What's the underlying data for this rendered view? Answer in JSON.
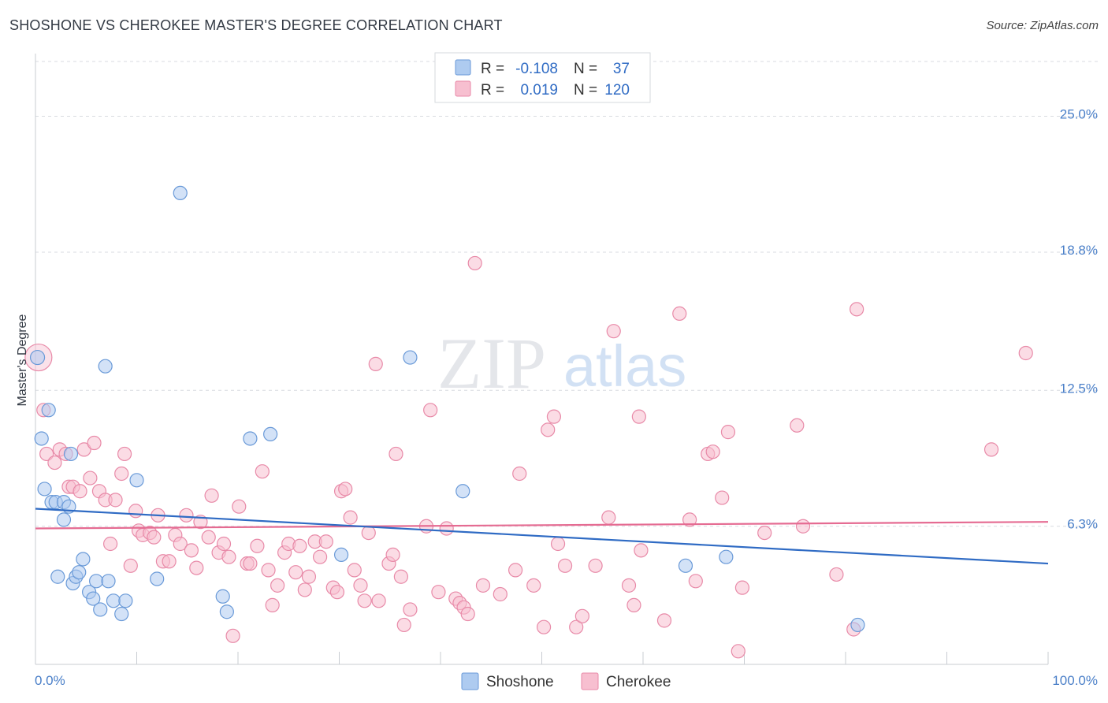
{
  "title": "SHOSHONE VS CHEROKEE MASTER'S DEGREE CORRELATION CHART",
  "source": "Source: ZipAtlas.com",
  "watermark": {
    "zip": "ZIP",
    "atlas": "atlas"
  },
  "colors": {
    "shoshone_fill": "#aecbf0",
    "shoshone_stroke": "#6a9ad8",
    "shoshone_line": "#2f6bc4",
    "cherokee_fill": "#f7bfd0",
    "cherokee_stroke": "#e88aa8",
    "cherokee_line": "#e56b92",
    "grid": "#d8dbe0",
    "axis": "#c8ccd2"
  },
  "legend": {
    "rows": [
      {
        "series": "Shoshone",
        "r_label": "R =",
        "r_value": "-0.108",
        "n_label": "N =",
        "n_value": "37"
      },
      {
        "series": "Cherokee",
        "r_label": "R =",
        "r_value": "0.019",
        "n_label": "N =",
        "n_value": "120"
      }
    ]
  },
  "chart_data": {
    "type": "scatter",
    "title": "SHOSHONE VS CHEROKEE MASTER'S DEGREE CORRELATION CHART",
    "xlabel": "",
    "ylabel": "Master's Degree",
    "xlim": [
      0,
      100
    ],
    "ylim": [
      0,
      27.5
    ],
    "x_tick_labels": [
      {
        "value": 0,
        "label": "0.0%"
      },
      {
        "value": 100,
        "label": "100.0%"
      }
    ],
    "y_tick_labels": [
      {
        "value": 6.3,
        "label": "6.3%"
      },
      {
        "value": 12.5,
        "label": "12.5%"
      },
      {
        "value": 18.8,
        "label": "18.8%"
      },
      {
        "value": 25.0,
        "label": "25.0%"
      }
    ],
    "grid": true,
    "legend_position": "top-center",
    "series": [
      {
        "name": "Shoshone",
        "trend": {
          "x": [
            0,
            100
          ],
          "y": [
            7.1,
            4.6
          ]
        },
        "points": [
          {
            "x": 0.2,
            "y": 14.0
          },
          {
            "x": 0.6,
            "y": 10.3
          },
          {
            "x": 0.9,
            "y": 8.0
          },
          {
            "x": 1.3,
            "y": 11.6
          },
          {
            "x": 1.6,
            "y": 7.4
          },
          {
            "x": 2.0,
            "y": 7.4
          },
          {
            "x": 2.2,
            "y": 4.0
          },
          {
            "x": 2.8,
            "y": 7.4
          },
          {
            "x": 2.8,
            "y": 6.6
          },
          {
            "x": 3.3,
            "y": 7.2
          },
          {
            "x": 3.5,
            "y": 9.6
          },
          {
            "x": 3.7,
            "y": 3.7
          },
          {
            "x": 4.0,
            "y": 4.0
          },
          {
            "x": 4.3,
            "y": 4.2
          },
          {
            "x": 4.7,
            "y": 4.8
          },
          {
            "x": 5.3,
            "y": 3.3
          },
          {
            "x": 5.7,
            "y": 3.0
          },
          {
            "x": 6.0,
            "y": 3.8
          },
          {
            "x": 6.4,
            "y": 2.5
          },
          {
            "x": 6.9,
            "y": 13.6
          },
          {
            "x": 7.2,
            "y": 3.8
          },
          {
            "x": 7.7,
            "y": 2.9
          },
          {
            "x": 8.5,
            "y": 2.3
          },
          {
            "x": 8.9,
            "y": 2.9
          },
          {
            "x": 10.0,
            "y": 8.4
          },
          {
            "x": 12.0,
            "y": 3.9
          },
          {
            "x": 14.3,
            "y": 21.5
          },
          {
            "x": 18.5,
            "y": 3.1
          },
          {
            "x": 18.9,
            "y": 2.4
          },
          {
            "x": 21.2,
            "y": 10.3
          },
          {
            "x": 23.2,
            "y": 10.5
          },
          {
            "x": 30.2,
            "y": 5.0
          },
          {
            "x": 37.0,
            "y": 14.0
          },
          {
            "x": 42.2,
            "y": 7.9
          },
          {
            "x": 64.2,
            "y": 4.5
          },
          {
            "x": 68.2,
            "y": 4.9
          },
          {
            "x": 81.2,
            "y": 1.8
          }
        ]
      },
      {
        "name": "Cherokee",
        "trend": {
          "x": [
            0,
            100
          ],
          "y": [
            6.2,
            6.5
          ]
        },
        "points": [
          {
            "x": 0.3,
            "y": 14.0
          },
          {
            "x": 0.8,
            "y": 11.6
          },
          {
            "x": 1.1,
            "y": 9.6
          },
          {
            "x": 1.9,
            "y": 9.2
          },
          {
            "x": 2.4,
            "y": 9.8
          },
          {
            "x": 3.0,
            "y": 9.6
          },
          {
            "x": 3.3,
            "y": 8.1
          },
          {
            "x": 3.7,
            "y": 8.1
          },
          {
            "x": 4.4,
            "y": 7.9
          },
          {
            "x": 4.8,
            "y": 9.8
          },
          {
            "x": 5.4,
            "y": 8.5
          },
          {
            "x": 5.8,
            "y": 10.1
          },
          {
            "x": 6.3,
            "y": 7.9
          },
          {
            "x": 6.9,
            "y": 7.5
          },
          {
            "x": 7.4,
            "y": 5.5
          },
          {
            "x": 7.9,
            "y": 7.5
          },
          {
            "x": 8.5,
            "y": 8.7
          },
          {
            "x": 8.8,
            "y": 9.6
          },
          {
            "x": 9.4,
            "y": 4.5
          },
          {
            "x": 9.9,
            "y": 7.0
          },
          {
            "x": 10.2,
            "y": 6.1
          },
          {
            "x": 10.6,
            "y": 5.9
          },
          {
            "x": 11.3,
            "y": 6.0
          },
          {
            "x": 11.7,
            "y": 5.8
          },
          {
            "x": 12.1,
            "y": 6.8
          },
          {
            "x": 12.6,
            "y": 4.7
          },
          {
            "x": 13.2,
            "y": 4.7
          },
          {
            "x": 13.8,
            "y": 5.9
          },
          {
            "x": 14.3,
            "y": 5.5
          },
          {
            "x": 14.9,
            "y": 6.8
          },
          {
            "x": 15.4,
            "y": 5.2
          },
          {
            "x": 15.9,
            "y": 4.4
          },
          {
            "x": 16.3,
            "y": 6.5
          },
          {
            "x": 17.1,
            "y": 5.8
          },
          {
            "x": 17.4,
            "y": 7.7
          },
          {
            "x": 18.1,
            "y": 5.1
          },
          {
            "x": 18.6,
            "y": 5.5
          },
          {
            "x": 19.1,
            "y": 4.9
          },
          {
            "x": 19.5,
            "y": 1.3
          },
          {
            "x": 20.1,
            "y": 7.2
          },
          {
            "x": 20.9,
            "y": 4.6
          },
          {
            "x": 21.2,
            "y": 4.6
          },
          {
            "x": 21.9,
            "y": 5.4
          },
          {
            "x": 22.4,
            "y": 8.8
          },
          {
            "x": 23.0,
            "y": 4.3
          },
          {
            "x": 23.4,
            "y": 2.7
          },
          {
            "x": 23.9,
            "y": 3.6
          },
          {
            "x": 24.6,
            "y": 5.1
          },
          {
            "x": 25.0,
            "y": 5.5
          },
          {
            "x": 25.7,
            "y": 4.2
          },
          {
            "x": 26.1,
            "y": 5.4
          },
          {
            "x": 26.6,
            "y": 3.4
          },
          {
            "x": 27.0,
            "y": 4.0
          },
          {
            "x": 27.6,
            "y": 5.6
          },
          {
            "x": 28.1,
            "y": 4.9
          },
          {
            "x": 28.7,
            "y": 5.6
          },
          {
            "x": 29.4,
            "y": 3.5
          },
          {
            "x": 29.8,
            "y": 3.3
          },
          {
            "x": 30.2,
            "y": 7.9
          },
          {
            "x": 30.6,
            "y": 8.0
          },
          {
            "x": 31.1,
            "y": 6.7
          },
          {
            "x": 31.5,
            "y": 4.3
          },
          {
            "x": 32.1,
            "y": 3.6
          },
          {
            "x": 32.5,
            "y": 2.9
          },
          {
            "x": 32.9,
            "y": 6.0
          },
          {
            "x": 33.6,
            "y": 13.7
          },
          {
            "x": 33.9,
            "y": 2.9
          },
          {
            "x": 34.9,
            "y": 4.6
          },
          {
            "x": 35.3,
            "y": 5.0
          },
          {
            "x": 35.6,
            "y": 9.6
          },
          {
            "x": 36.1,
            "y": 4.0
          },
          {
            "x": 36.4,
            "y": 1.8
          },
          {
            "x": 37.0,
            "y": 2.5
          },
          {
            "x": 38.6,
            "y": 6.3
          },
          {
            "x": 39.0,
            "y": 11.6
          },
          {
            "x": 39.8,
            "y": 3.3
          },
          {
            "x": 40.6,
            "y": 6.2
          },
          {
            "x": 41.5,
            "y": 3.0
          },
          {
            "x": 41.9,
            "y": 2.8
          },
          {
            "x": 42.3,
            "y": 2.6
          },
          {
            "x": 42.7,
            "y": 2.3
          },
          {
            "x": 43.4,
            "y": 18.3
          },
          {
            "x": 44.2,
            "y": 3.6
          },
          {
            "x": 45.9,
            "y": 3.2
          },
          {
            "x": 47.4,
            "y": 4.3
          },
          {
            "x": 47.8,
            "y": 8.7
          },
          {
            "x": 49.2,
            "y": 3.6
          },
          {
            "x": 50.2,
            "y": 1.7
          },
          {
            "x": 50.6,
            "y": 10.7
          },
          {
            "x": 51.2,
            "y": 11.3
          },
          {
            "x": 51.6,
            "y": 5.5
          },
          {
            "x": 52.3,
            "y": 4.5
          },
          {
            "x": 53.4,
            "y": 1.7
          },
          {
            "x": 54.0,
            "y": 2.2
          },
          {
            "x": 55.3,
            "y": 4.5
          },
          {
            "x": 56.6,
            "y": 6.7
          },
          {
            "x": 57.1,
            "y": 15.2
          },
          {
            "x": 58.6,
            "y": 3.6
          },
          {
            "x": 59.1,
            "y": 2.7
          },
          {
            "x": 59.6,
            "y": 11.3
          },
          {
            "x": 59.8,
            "y": 5.2
          },
          {
            "x": 62.1,
            "y": 2.0
          },
          {
            "x": 63.6,
            "y": 16.0
          },
          {
            "x": 64.6,
            "y": 6.6
          },
          {
            "x": 65.2,
            "y": 3.8
          },
          {
            "x": 66.4,
            "y": 9.6
          },
          {
            "x": 66.9,
            "y": 9.7
          },
          {
            "x": 67.8,
            "y": 7.6
          },
          {
            "x": 68.4,
            "y": 10.6
          },
          {
            "x": 69.4,
            "y": 0.6
          },
          {
            "x": 69.8,
            "y": 3.5
          },
          {
            "x": 72.0,
            "y": 6.0
          },
          {
            "x": 75.2,
            "y": 10.9
          },
          {
            "x": 75.8,
            "y": 6.3
          },
          {
            "x": 79.1,
            "y": 4.1
          },
          {
            "x": 80.8,
            "y": 1.6
          },
          {
            "x": 81.1,
            "y": 16.2
          },
          {
            "x": 94.4,
            "y": 9.8
          },
          {
            "x": 97.8,
            "y": 14.2
          }
        ]
      }
    ]
  },
  "bottom_legend": [
    {
      "label": "Shoshone"
    },
    {
      "label": "Cherokee"
    }
  ]
}
